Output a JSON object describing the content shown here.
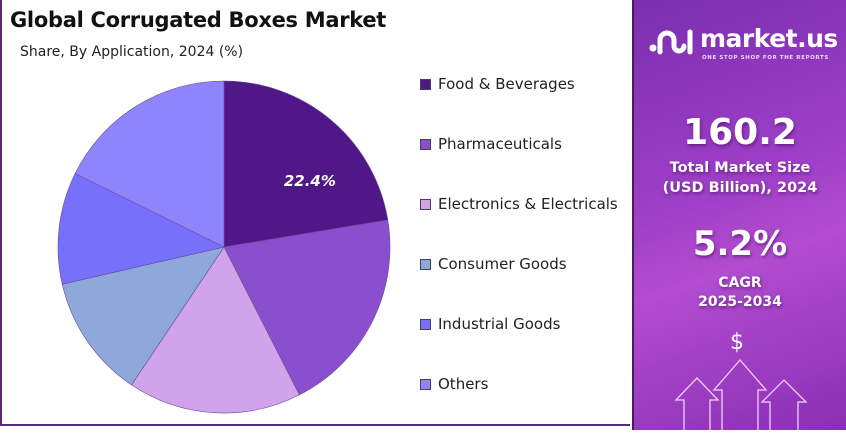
{
  "chart_data": {
    "type": "pie",
    "title": "Global Corrugated Boxes Market",
    "subtitle": "Share, By Application, 2024 (%)",
    "categories": [
      "Food & Beverages",
      "Pharmaceuticals",
      "Electronics & Electricals",
      "Consumer Goods",
      "Industrial Goods",
      "Others"
    ],
    "values": [
      22.4,
      20.1,
      16.9,
      12.0,
      10.9,
      17.7
    ],
    "colors": [
      "#4f1787",
      "#8a4fcf",
      "#d0a3ea",
      "#8ea8dc",
      "#7670fb",
      "#8e85fc"
    ],
    "data_labels": [
      "22.4%",
      "",
      "",
      "",
      "",
      ""
    ],
    "start_angle": "12 o'clock, clockwise",
    "legend_placement": "right"
  },
  "panel": {
    "brand": "market.us",
    "tagline": "ONE STOP SHOP FOR THE REPORTS",
    "market_size_value": "160.2",
    "market_size_label_1": "Total Market Size",
    "market_size_label_2": "(USD Billion), 2024",
    "cagr_value": "5.2%",
    "cagr_label_1": "CAGR",
    "cagr_label_2": "2025-2034",
    "dollar_symbol": "$"
  }
}
